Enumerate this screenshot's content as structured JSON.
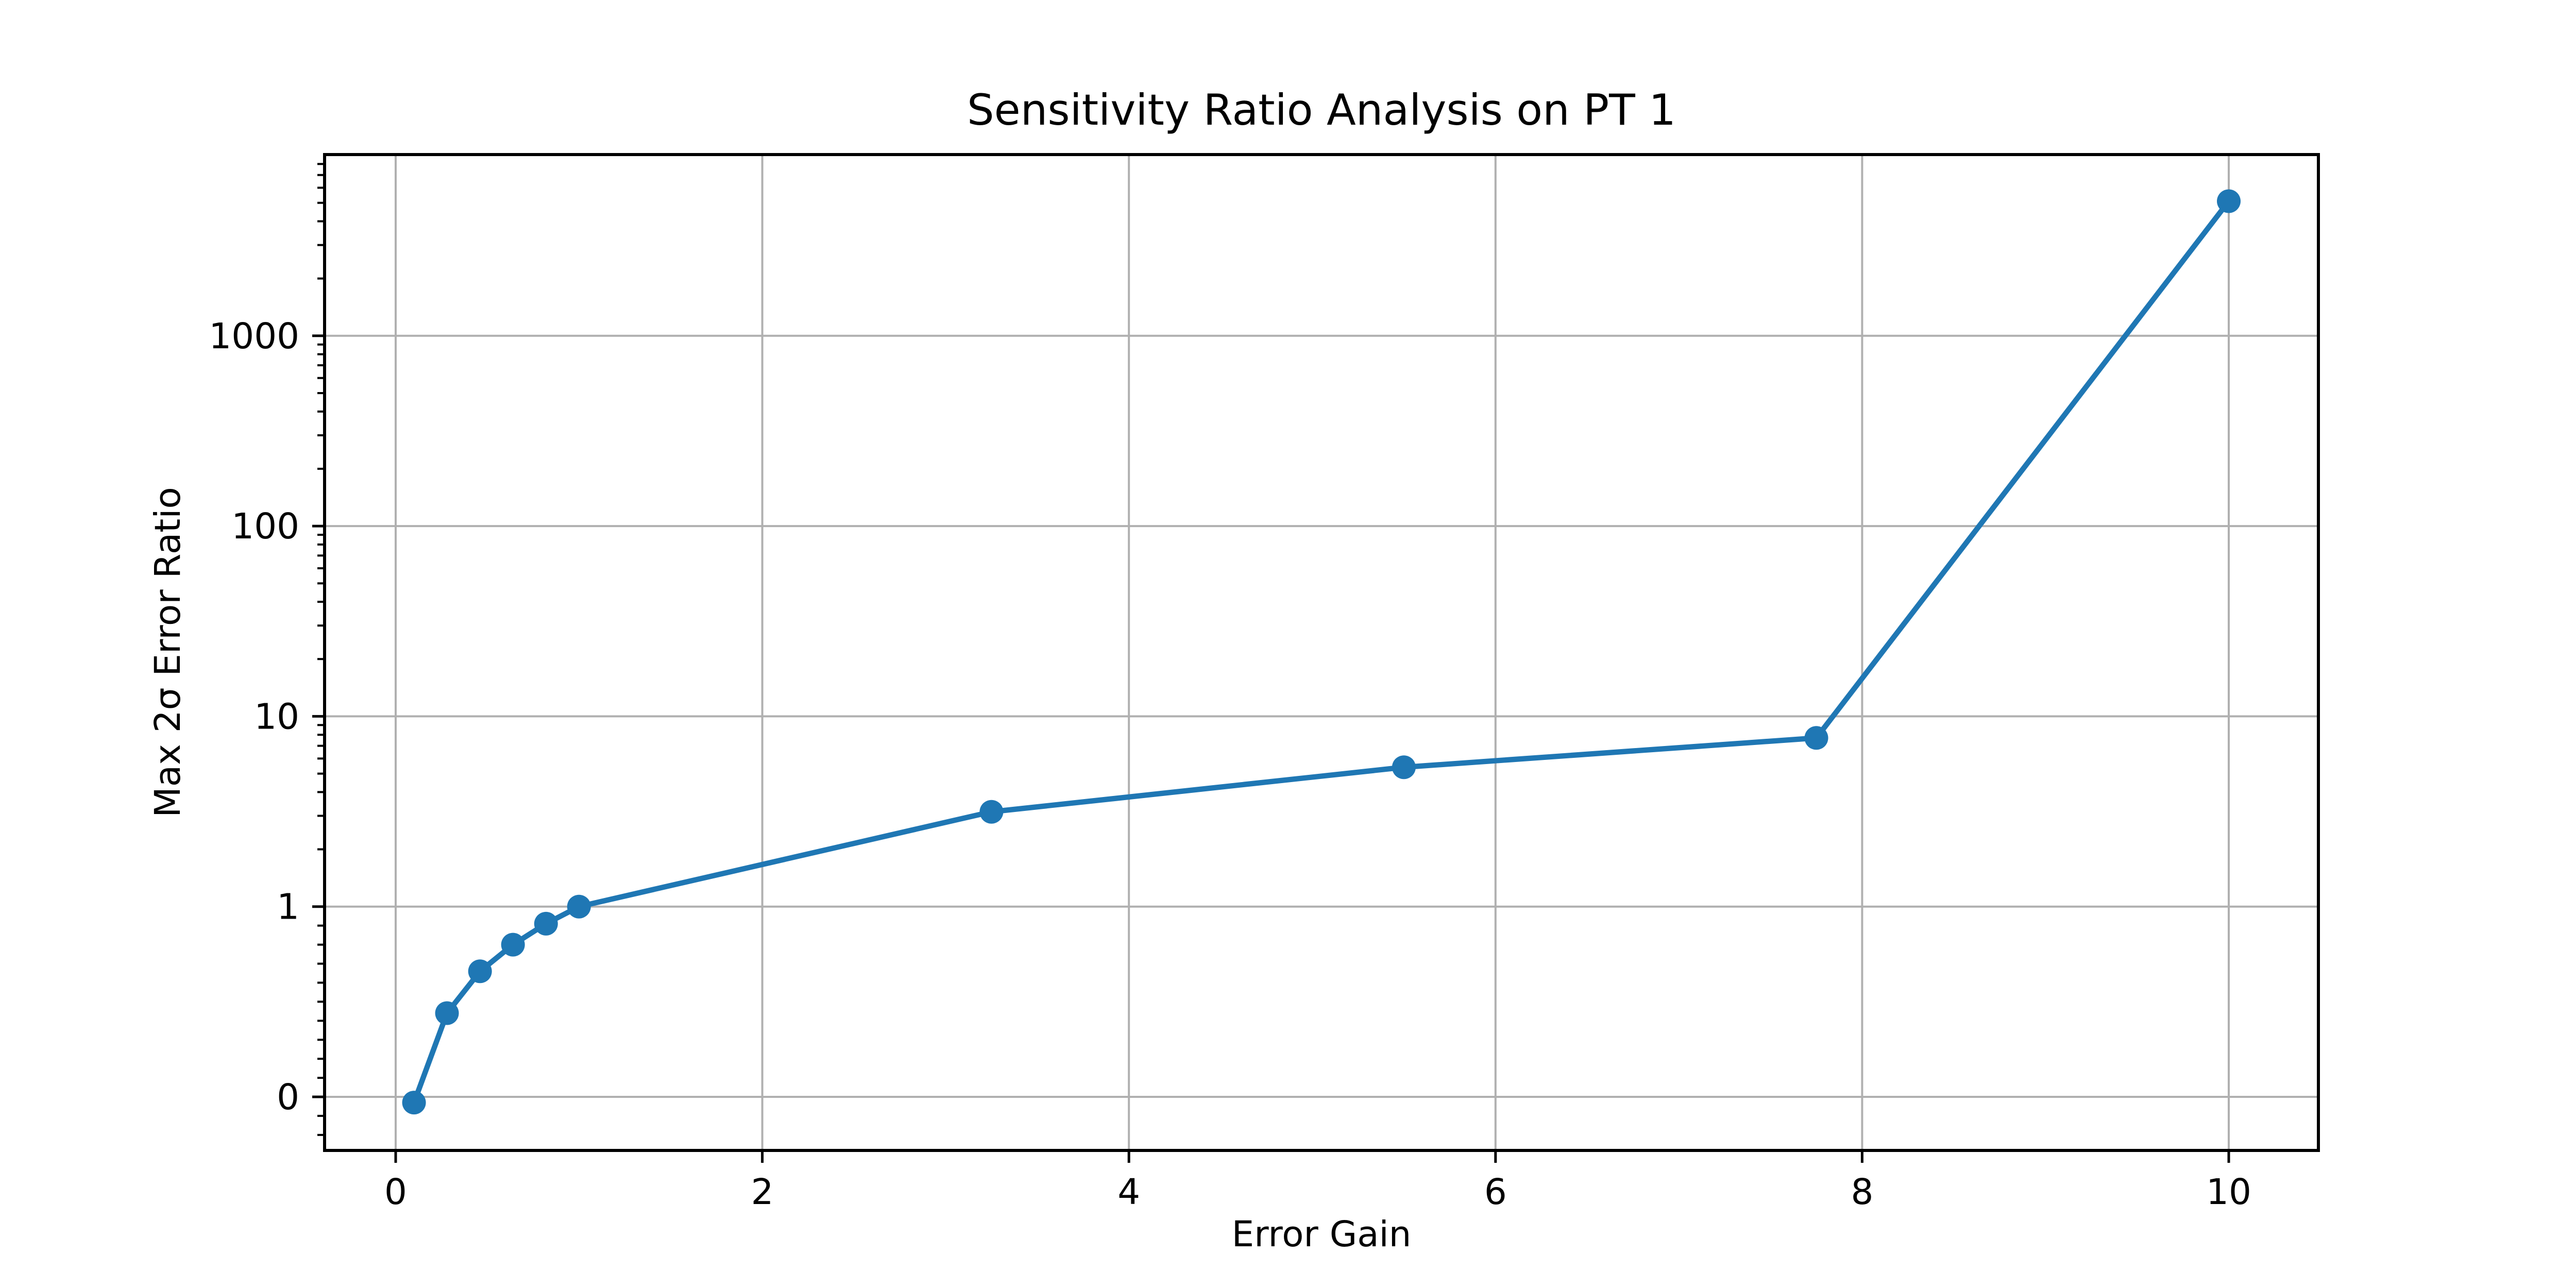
{
  "chart_data": {
    "type": "line",
    "title": "Sensitivity Ratio Analysis on PT 1",
    "xlabel": "Error Gain",
    "ylabel": "Max 2σ Error Ratio",
    "x": [
      0.1,
      0.28,
      0.46,
      0.64,
      0.82,
      1.0,
      3.25,
      5.5,
      7.75,
      10.0
    ],
    "y": [
      -0.03,
      0.44,
      0.66,
      0.8,
      0.91,
      1.0,
      3.15,
      5.4,
      7.7,
      5100
    ],
    "x_ticks": [
      {
        "v": 0,
        "label": "0"
      },
      {
        "v": 2,
        "label": "2"
      },
      {
        "v": 4,
        "label": "4"
      },
      {
        "v": 6,
        "label": "6"
      },
      {
        "v": 8,
        "label": "8"
      },
      {
        "v": 10,
        "label": "10"
      }
    ],
    "y_ticks": [
      {
        "v": 0,
        "label": "0"
      },
      {
        "v": 1,
        "label": "1"
      },
      {
        "v": 10,
        "label": "10"
      },
      {
        "v": 100,
        "label": "100"
      },
      {
        "v": 1000,
        "label": "1000"
      }
    ],
    "y_scale": "symlog",
    "linthresh": 1,
    "xlim": [
      -0.39,
      10.45
    ],
    "ylim": [
      -0.28,
      8900
    ],
    "grid": true,
    "legend": "none",
    "marker": "o",
    "line_style": "solid",
    "colors": {
      "line": "#1f77b4",
      "grid": "#b0b0b0",
      "axis": "#000000",
      "text": "#000000",
      "background": "#ffffff"
    }
  }
}
